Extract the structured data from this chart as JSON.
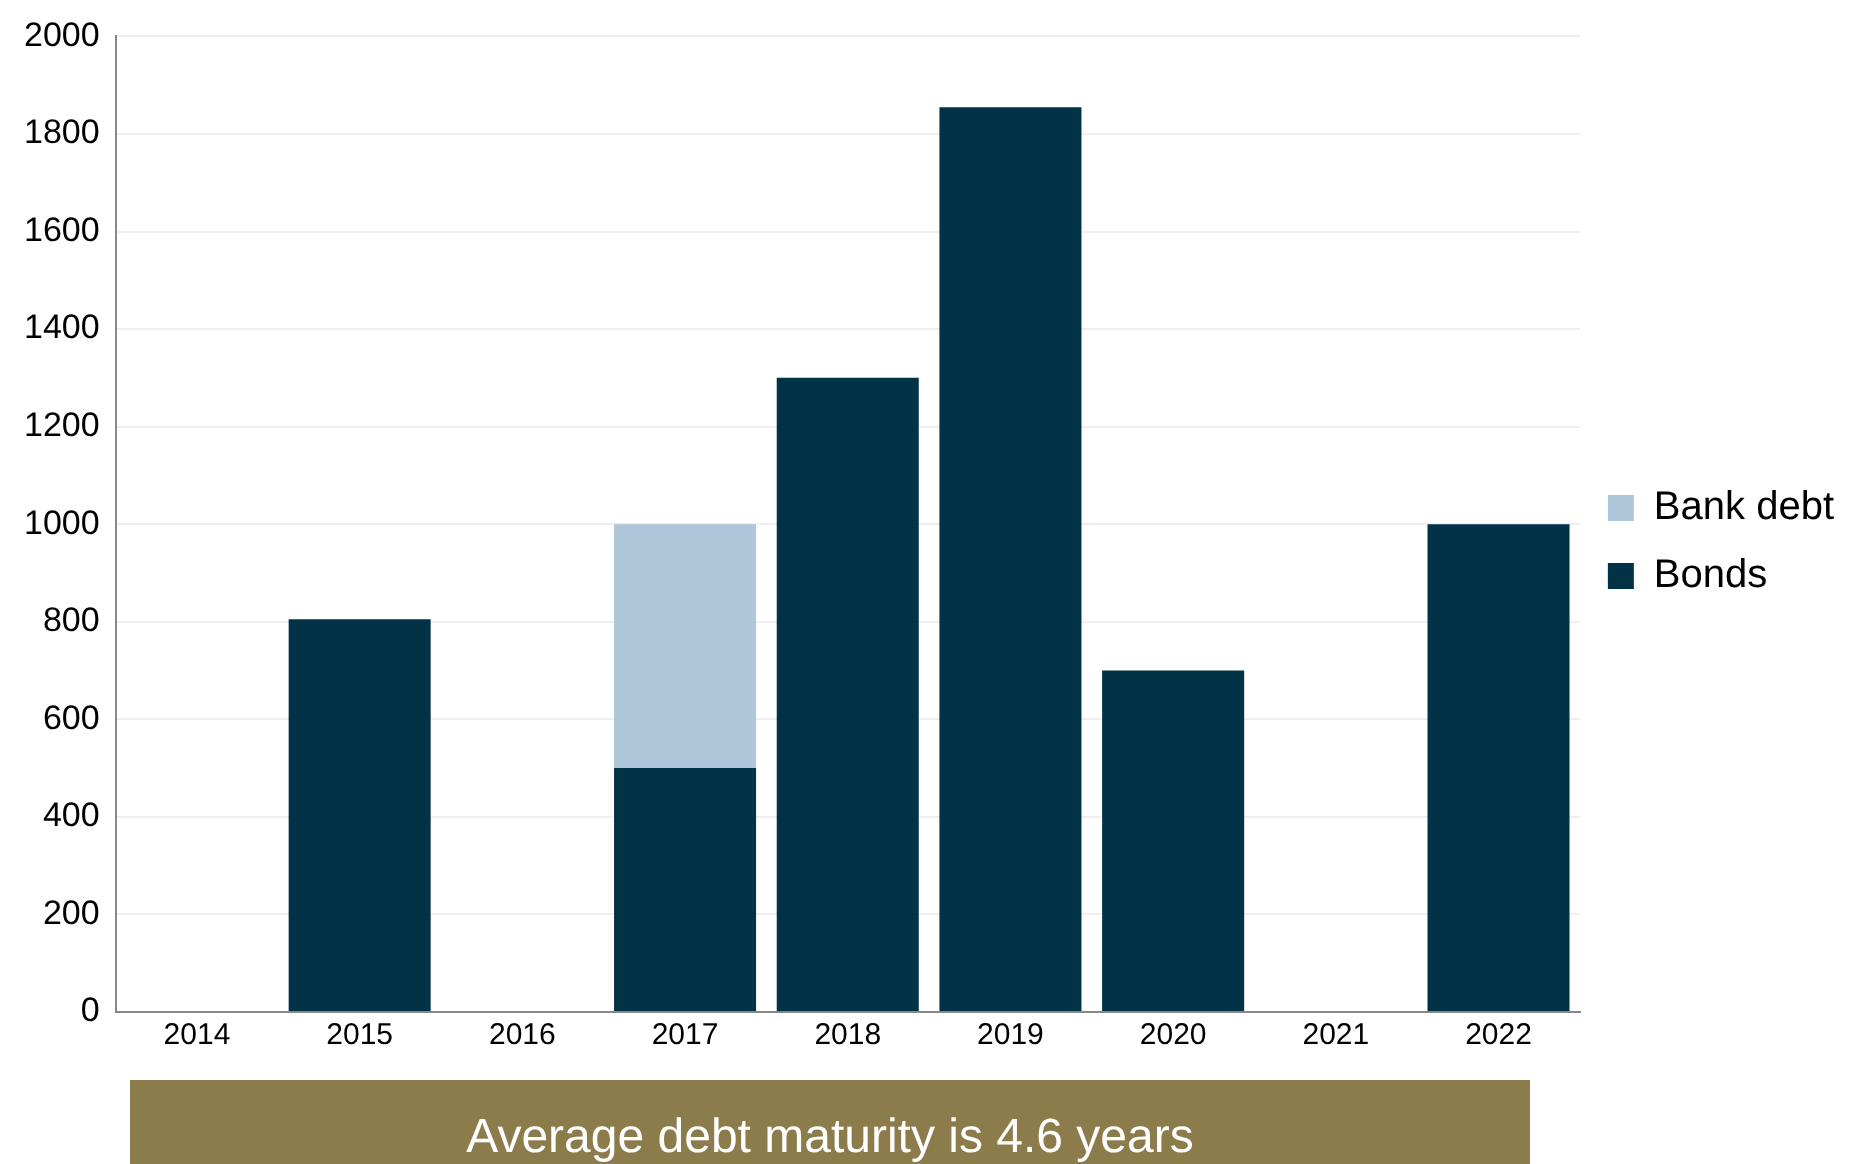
{
  "chart_data": {
    "type": "bar",
    "stacked": true,
    "categories": [
      "2014",
      "2015",
      "2016",
      "2017",
      "2018",
      "2019",
      "2020",
      "2021",
      "2022"
    ],
    "series": [
      {
        "name": "Bonds",
        "color": "#023246",
        "values": [
          null,
          805,
          null,
          500,
          1300,
          1855,
          700,
          null,
          1000
        ]
      },
      {
        "name": "Bank debt",
        "color": "#adc6d9",
        "values": [
          null,
          null,
          null,
          500,
          null,
          null,
          null,
          null,
          null
        ]
      }
    ],
    "ylim": [
      0,
      2000
    ],
    "yticks": [
      0,
      200,
      400,
      600,
      800,
      1000,
      1200,
      1400,
      1600,
      1800,
      2000
    ],
    "grid": "y",
    "legend": "right",
    "annotations": [
      "Average debt maturity is 4.6 years"
    ]
  }
}
